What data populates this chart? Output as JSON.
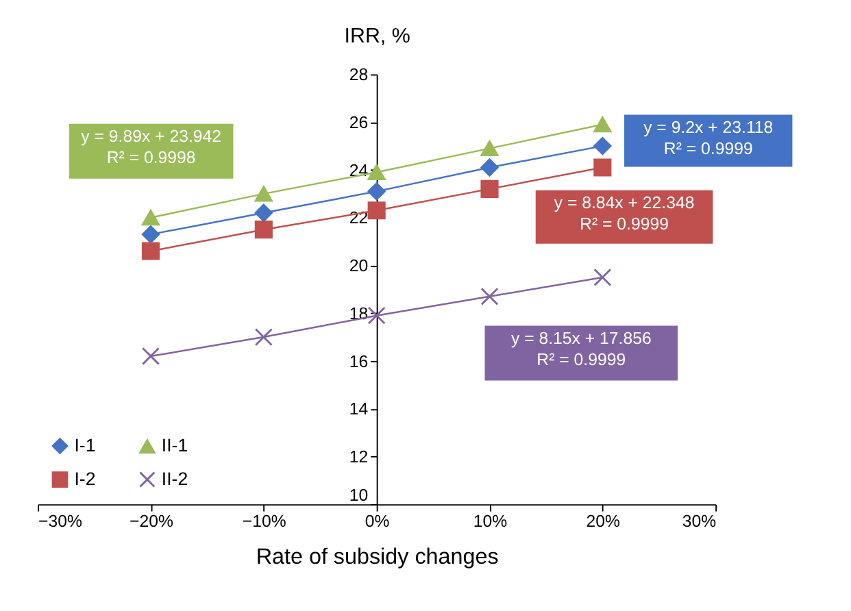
{
  "chart_data": {
    "type": "line",
    "xlabel": "Rate of subsidy changes",
    "ylabel": "IRR, %",
    "x": [
      -20,
      -10,
      0,
      10,
      20
    ],
    "series": [
      {
        "name": "I-1",
        "color": "#4472c4",
        "marker": "diamond",
        "values": [
          21.3,
          22.2,
          23.1,
          24.1,
          25.0
        ]
      },
      {
        "name": "II-1",
        "color": "#9bbb59",
        "marker": "triangle",
        "values": [
          22.0,
          23.0,
          23.9,
          24.9,
          25.9
        ]
      },
      {
        "name": "I-2",
        "color": "#c0504d",
        "marker": "square",
        "values": [
          20.6,
          21.5,
          22.3,
          23.2,
          24.1
        ]
      },
      {
        "name": "II-2",
        "color": "#8064a2",
        "marker": "cross",
        "values": [
          16.2,
          17.0,
          17.9,
          18.7,
          19.5
        ]
      }
    ],
    "annotations": [
      "y = 9.2x + 23.118\nR² = 0.9999",
      "y = 9.89x + 23.942\nR² = 0.9998",
      "y = 8.84x + 22.348\nR² = 0.9999",
      "y = 8.15x + 17.856\nR² = 0.9999"
    ],
    "xlim": [
      -30,
      30
    ],
    "xticks": [
      {
        "value": -30,
        "label": "−30%"
      },
      {
        "value": -20,
        "label": "−20%"
      },
      {
        "value": -10,
        "label": "−10%"
      },
      {
        "value": 0,
        "label": "0%"
      },
      {
        "value": 10,
        "label": "10%"
      },
      {
        "value": 20,
        "label": "20%"
      },
      {
        "value": 30,
        "label": "30%"
      }
    ],
    "ylim": [
      10,
      28
    ],
    "yticks": [
      10,
      12,
      14,
      16,
      18,
      20,
      22,
      24,
      26,
      28
    ],
    "grid": false,
    "legend": "bottom left",
    "line_style": "solid"
  }
}
